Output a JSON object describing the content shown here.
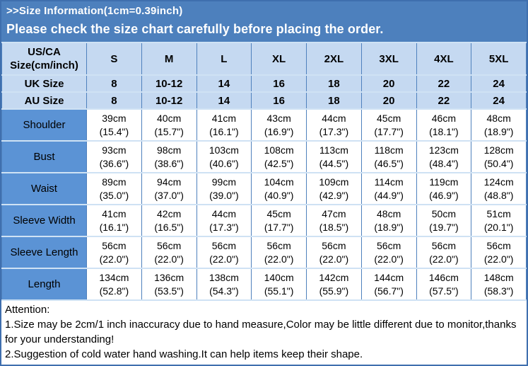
{
  "banner": {
    "line1": ">>Size Information(1cm=0.39inch)",
    "line2": "Please check the size chart carefully before placing the order."
  },
  "table": {
    "header": {
      "corner_line1": "US/CA",
      "corner_line2": "Size(cm/inch)",
      "sizes": [
        "S",
        "M",
        "L",
        "XL",
        "2XL",
        "3XL",
        "4XL",
        "5XL"
      ]
    },
    "size_rows": [
      {
        "label": "UK Size",
        "values": [
          "8",
          "10-12",
          "14",
          "16",
          "18",
          "20",
          "22",
          "24"
        ]
      },
      {
        "label": "AU Size",
        "values": [
          "8",
          "10-12",
          "14",
          "16",
          "18",
          "20",
          "22",
          "24"
        ]
      }
    ],
    "measurement_rows": [
      {
        "label": "Shoulder",
        "cells": [
          {
            "cm": "39cm",
            "inch": "(15.4\")"
          },
          {
            "cm": "40cm",
            "inch": "(15.7\")"
          },
          {
            "cm": "41cm",
            "inch": "(16.1\")"
          },
          {
            "cm": "43cm",
            "inch": "(16.9\")"
          },
          {
            "cm": "44cm",
            "inch": "(17.3\")"
          },
          {
            "cm": "45cm",
            "inch": "(17.7\")"
          },
          {
            "cm": "46cm",
            "inch": "(18.1\")"
          },
          {
            "cm": "48cm",
            "inch": "(18.9\")"
          }
        ]
      },
      {
        "label": "Bust",
        "cells": [
          {
            "cm": "93cm",
            "inch": "(36.6\")"
          },
          {
            "cm": "98cm",
            "inch": "(38.6\")"
          },
          {
            "cm": "103cm",
            "inch": "(40.6\")"
          },
          {
            "cm": "108cm",
            "inch": "(42.5\")"
          },
          {
            "cm": "113cm",
            "inch": "(44.5\")"
          },
          {
            "cm": "118cm",
            "inch": "(46.5\")"
          },
          {
            "cm": "123cm",
            "inch": "(48.4\")"
          },
          {
            "cm": "128cm",
            "inch": "(50.4\")"
          }
        ]
      },
      {
        "label": "Waist",
        "cells": [
          {
            "cm": "89cm",
            "inch": "(35.0\")"
          },
          {
            "cm": "94cm",
            "inch": "(37.0\")"
          },
          {
            "cm": "99cm",
            "inch": "(39.0\")"
          },
          {
            "cm": "104cm",
            "inch": "(40.9\")"
          },
          {
            "cm": "109cm",
            "inch": "(42.9\")"
          },
          {
            "cm": "114cm",
            "inch": "(44.9\")"
          },
          {
            "cm": "119cm",
            "inch": "(46.9\")"
          },
          {
            "cm": "124cm",
            "inch": "(48.8\")"
          }
        ]
      },
      {
        "label": "Sleeve Width",
        "cells": [
          {
            "cm": "41cm",
            "inch": "(16.1\")"
          },
          {
            "cm": "42cm",
            "inch": "(16.5\")"
          },
          {
            "cm": "44cm",
            "inch": "(17.3\")"
          },
          {
            "cm": "45cm",
            "inch": "(17.7\")"
          },
          {
            "cm": "47cm",
            "inch": "(18.5\")"
          },
          {
            "cm": "48cm",
            "inch": "(18.9\")"
          },
          {
            "cm": "50cm",
            "inch": "(19.7\")"
          },
          {
            "cm": "51cm",
            "inch": "(20.1\")"
          }
        ]
      },
      {
        "label": "Sleeve Length",
        "cells": [
          {
            "cm": "56cm",
            "inch": "(22.0\")"
          },
          {
            "cm": "56cm",
            "inch": "(22.0\")"
          },
          {
            "cm": "56cm",
            "inch": "(22.0\")"
          },
          {
            "cm": "56cm",
            "inch": "(22.0\")"
          },
          {
            "cm": "56cm",
            "inch": "(22.0\")"
          },
          {
            "cm": "56cm",
            "inch": "(22.0\")"
          },
          {
            "cm": "56cm",
            "inch": "(22.0\")"
          },
          {
            "cm": "56cm",
            "inch": "(22.0\")"
          }
        ]
      },
      {
        "label": "Length",
        "cells": [
          {
            "cm": "134cm",
            "inch": "(52.8\")"
          },
          {
            "cm": "136cm",
            "inch": "(53.5\")"
          },
          {
            "cm": "138cm",
            "inch": "(54.3\")"
          },
          {
            "cm": "140cm",
            "inch": "(55.1\")"
          },
          {
            "cm": "142cm",
            "inch": "(55.9\")"
          },
          {
            "cm": "144cm",
            "inch": "(56.7\")"
          },
          {
            "cm": "146cm",
            "inch": "(57.5\")"
          },
          {
            "cm": "148cm",
            "inch": "(58.3\")"
          }
        ]
      }
    ]
  },
  "attention": {
    "title": "Attention:",
    "note1": "1.Size may be 2cm/1 inch inaccuracy due to hand measure,Color may be little different due to monitor,thanks for your understanding!",
    "note2": "2.Suggestion of cold water hand washing.It can help items keep their shape."
  },
  "colors": {
    "banner_bg": "#4d80bd",
    "outer_border": "#3f6fae",
    "header_bg": "#c5d9f1",
    "label_bg": "#5b93d5",
    "border_vertical": "#4f81bd",
    "border_horizontal": "#cfe2f4",
    "banner_text": "#ffffff",
    "table_text": "#000000"
  }
}
